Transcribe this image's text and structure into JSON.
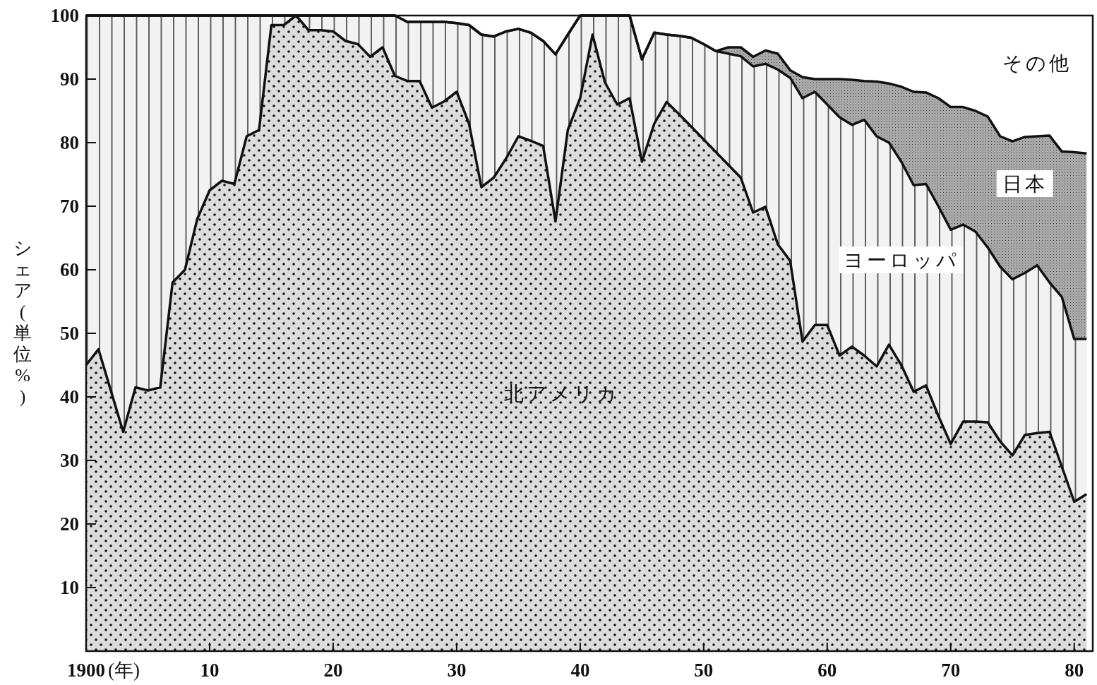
{
  "chart_data": {
    "type": "area",
    "stacked": true,
    "ylabel": "シェア(単位%)",
    "xlabel": "(年)",
    "x": [
      1900,
      1901,
      1902,
      1903,
      1904,
      1905,
      1906,
      1907,
      1908,
      1909,
      1910,
      1911,
      1912,
      1913,
      1914,
      1915,
      1916,
      1917,
      1918,
      1919,
      1920,
      1921,
      1922,
      1923,
      1924,
      1925,
      1926,
      1927,
      1928,
      1929,
      1930,
      1931,
      1932,
      1933,
      1934,
      1935,
      1936,
      1937,
      1938,
      1939,
      1940,
      1941,
      1942,
      1943,
      1944,
      1945,
      1946,
      1947,
      1948,
      1949,
      1950,
      1951,
      1952,
      1953,
      1954,
      1955,
      1956,
      1957,
      1958,
      1959,
      1960,
      1961,
      1962,
      1963,
      1964,
      1965,
      1966,
      1967,
      1968,
      1969,
      1970,
      1971,
      1972,
      1973,
      1974,
      1975,
      1976,
      1977,
      1978,
      1979,
      1980,
      1981
    ],
    "xlim": [
      1900,
      1981.5
    ],
    "xticks": [
      {
        "value": 1900,
        "label": "1900"
      },
      {
        "value": 1910,
        "label": "10"
      },
      {
        "value": 1920,
        "label": "20"
      },
      {
        "value": 1930,
        "label": "30"
      },
      {
        "value": 1940,
        "label": "40"
      },
      {
        "value": 1950,
        "label": "50"
      },
      {
        "value": 1960,
        "label": "60"
      },
      {
        "value": 1970,
        "label": "70"
      },
      {
        "value": 1980,
        "label": "80"
      }
    ],
    "ylim": [
      0,
      100
    ],
    "yticks": [
      10,
      20,
      30,
      40,
      50,
      60,
      70,
      80,
      90,
      100
    ],
    "grid": false,
    "series": [
      {
        "name": "北アメリカ",
        "color": "#dcdcdc",
        "values": [
          45,
          47.5,
          41,
          34.5,
          41.5,
          41,
          41.5,
          58,
          60,
          68,
          72.5,
          74,
          73.5,
          81,
          82,
          98.5,
          98.5,
          100,
          97.7,
          97.7,
          97.5,
          96,
          95.5,
          93.5,
          95,
          90.5,
          89.7,
          89.7,
          85.5,
          86.5,
          88,
          83,
          73,
          74.5,
          77.5,
          81,
          80.3,
          79.5,
          67.6,
          82,
          87,
          97,
          89.5,
          86,
          87,
          77,
          83,
          86.4,
          84.5,
          82.5,
          80.5,
          78.5,
          76.5,
          74.5,
          69,
          69.9,
          64,
          61.4,
          48.7,
          51.3,
          51.3,
          46.5,
          47.9,
          46.5,
          44.8,
          48.2,
          45,
          40.8,
          41.8,
          37,
          32.6,
          36.1,
          36.1,
          36,
          33,
          30.8,
          34,
          34.3,
          34.5,
          29,
          23.5,
          24.7
        ]
      },
      {
        "name": "ヨーロッパ",
        "color": "#f2f2f2",
        "values": [
          55,
          52.5,
          59,
          65.5,
          58.5,
          59,
          58.5,
          42,
          40,
          32,
          27.5,
          26,
          26.5,
          19,
          18,
          1.5,
          1.5,
          0,
          2.3,
          2.3,
          2.5,
          4,
          4.5,
          6.5,
          5,
          9.5,
          9.3,
          9.3,
          13.5,
          12.5,
          10.8,
          15.5,
          24,
          22.2,
          20,
          16.9,
          17,
          16.5,
          26.3,
          15,
          13,
          3,
          10.5,
          14,
          13,
          16.1,
          14.3,
          10.6,
          12.3,
          14,
          15,
          15.9,
          17.5,
          19.1,
          23,
          22.5,
          27.5,
          28.8,
          38.3,
          36.7,
          34.7,
          37.5,
          34.9,
          37.1,
          36.2,
          31.8,
          32,
          32.5,
          31.7,
          33,
          33.7,
          31,
          29.9,
          27.5,
          27.5,
          27.7,
          25.5,
          26.4,
          23.5,
          26.7,
          25.6,
          24.4
        ]
      },
      {
        "name": "日本",
        "color": "#a8a8a8",
        "values": [
          0,
          0,
          0,
          0,
          0,
          0,
          0,
          0,
          0,
          0,
          0,
          0,
          0,
          0,
          0,
          0,
          0,
          0,
          0,
          0,
          0,
          0,
          0,
          0,
          0,
          0,
          0,
          0,
          0,
          0,
          0,
          0,
          0,
          0,
          0,
          0,
          0,
          0,
          0,
          0,
          0,
          0,
          0,
          0,
          0,
          0,
          0,
          0,
          0,
          0,
          0,
          0,
          1,
          1.4,
          1.5,
          2.1,
          2.5,
          1.2,
          3.3,
          2,
          4,
          6,
          7.1,
          6.1,
          8.6,
          9.3,
          11.8,
          14.7,
          14.4,
          17,
          19.3,
          18.5,
          19,
          20.6,
          20.5,
          21.7,
          21.4,
          20.3,
          23.1,
          22.9,
          29.4,
          29.2
        ]
      },
      {
        "name": "その他",
        "color": "#ffffff",
        "values": [
          0,
          0,
          0,
          0,
          0,
          0,
          0,
          0,
          0,
          0,
          0,
          0,
          0,
          0,
          0,
          0,
          0,
          0,
          0,
          0,
          0,
          0,
          0,
          0,
          0,
          0,
          1,
          1,
          1,
          1,
          1.2,
          1.5,
          3,
          3.3,
          2.5,
          2.1,
          2.7,
          4,
          6.1,
          3,
          0,
          0,
          0,
          0,
          0,
          6.9,
          2.7,
          3,
          3.2,
          3.5,
          4.5,
          5.6,
          5,
          5,
          6.5,
          5.5,
          6,
          8.6,
          9.7,
          10,
          10,
          10,
          10.1,
          10.3,
          10.4,
          10.7,
          11.2,
          12,
          12.1,
          13,
          14.4,
          14.4,
          15,
          15.9,
          19,
          19.8,
          19.1,
          19,
          18.9,
          21.4,
          21.5,
          21.7
        ]
      }
    ]
  }
}
